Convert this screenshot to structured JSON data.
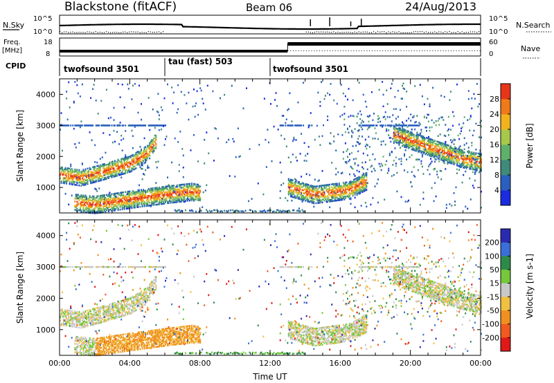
{
  "header": {
    "station": "Blackstone (fitACF)",
    "beam": "Beam 06",
    "date": "24/Aug/2013"
  },
  "summary_panels": {
    "nsky_label": "N.Sky",
    "nsky_ticks": [
      "10^5",
      "10^0"
    ],
    "nsearch_label": "N.Search",
    "freq_label": "Freq.",
    "freq_unit": "[MHz]",
    "freq_ticks": [
      "18",
      "8"
    ],
    "nave_label": "Nave",
    "nave_ticks": [
      "60",
      "0"
    ],
    "cpid_label": "CPID",
    "cpid_segments": [
      {
        "label": "twofsound 3501",
        "start_hour": 0,
        "end_hour": 6
      },
      {
        "label": "tau (fast) 503",
        "start_hour": 6,
        "end_hour": 12
      },
      {
        "label": "twofsound 3501",
        "start_hour": 12,
        "end_hour": 24
      }
    ]
  },
  "chart_data": [
    {
      "type": "heatmap",
      "title": "Power",
      "xlabel": "",
      "ylabel": "Slant Range [km]",
      "xlim": [
        0,
        24
      ],
      "ylim": [
        180,
        4500
      ],
      "yticks": [
        "1000",
        "2000",
        "3000",
        "4000"
      ],
      "colorbar": {
        "label": "Power [dB]",
        "ticks": [
          "4",
          "8",
          "12",
          "16",
          "20",
          "24",
          "28"
        ],
        "range": [
          0,
          32
        ],
        "colors": [
          "#1a2be0",
          "#2a5fbf",
          "#3f8a7a",
          "#5fb06a",
          "#a8c84a",
          "#f2b21c",
          "#f07a1a",
          "#e8351a"
        ]
      },
      "features": [
        {
          "name": "lower band",
          "points": [
            [
              0.8,
              500
            ],
            [
              2,
              430
            ],
            [
              4,
              600
            ],
            [
              6,
              750
            ],
            [
              7.5,
              850
            ],
            [
              8,
              800
            ]
          ]
        },
        {
          "name": "upper band",
          "points": [
            [
              0,
              1400
            ],
            [
              1.2,
              1300
            ],
            [
              2.5,
              1500
            ],
            [
              4,
              1750
            ],
            [
              5,
              2100
            ],
            [
              5.5,
              2500
            ]
          ]
        },
        {
          "name": "night band",
          "points": [
            [
              13,
              1000
            ],
            [
              14.5,
              750
            ],
            [
              16.5,
              900
            ],
            [
              17.5,
              1200
            ]
          ]
        },
        {
          "name": "evening band",
          "points": [
            [
              19,
              2700
            ],
            [
              21,
              2300
            ],
            [
              23,
              1900
            ],
            [
              24,
              1800
            ]
          ]
        }
      ]
    },
    {
      "type": "heatmap",
      "title": "Velocity",
      "xlabel": "Time UT",
      "ylabel": "Slant Range [km]",
      "xlim": [
        0,
        24
      ],
      "ylim": [
        180,
        4500
      ],
      "xticks": [
        "00:00",
        "04:00",
        "08:00",
        "12:00",
        "16:00",
        "20:00",
        "00:00"
      ],
      "yticks": [
        "1000",
        "2000",
        "3000",
        "4000"
      ],
      "colorbar": {
        "label": "Velocity [m s-1]",
        "ticks": [
          "200",
          "100",
          "50",
          "15",
          "-15",
          "-50",
          "-100",
          "-200"
        ],
        "colors": [
          "#2a2ab0",
          "#3a6ed8",
          "#2e8a4a",
          "#74c83a",
          "#c8c8c8",
          "#f0c040",
          "#f09020",
          "#f05a20",
          "#e01818"
        ]
      }
    }
  ]
}
